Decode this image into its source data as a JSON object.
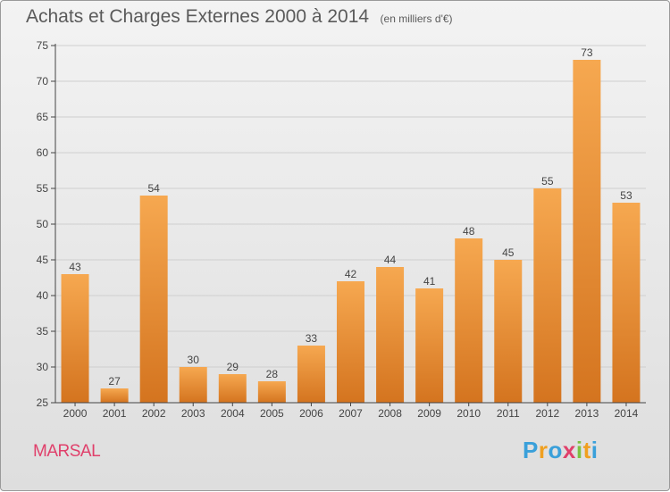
{
  "chart_data": {
    "type": "bar",
    "title": "Achats et Charges Externes 2000 à 2014",
    "subtitle": "(en milliers d'€)",
    "categories": [
      "2000",
      "2001",
      "2002",
      "2003",
      "2004",
      "2005",
      "2006",
      "2007",
      "2008",
      "2009",
      "2010",
      "2011",
      "2012",
      "2013",
      "2014"
    ],
    "values": [
      43,
      27,
      54,
      30,
      29,
      28,
      33,
      42,
      44,
      41,
      48,
      45,
      55,
      73,
      53
    ],
    "ylim": [
      25,
      75
    ],
    "yticks": [
      25,
      30,
      35,
      40,
      45,
      50,
      55,
      60,
      65,
      70,
      75
    ],
    "grid": true,
    "bar_color": "#f39a3e",
    "label": "MARSAL"
  },
  "logo": {
    "letters": [
      "P",
      "r",
      "o",
      "x",
      "i",
      "t",
      "i"
    ],
    "colors": [
      "#3aa0da",
      "#f0a020",
      "#3aa0da",
      "#e0406b",
      "#7cc242",
      "#f0a020",
      "#3aa0da"
    ]
  }
}
